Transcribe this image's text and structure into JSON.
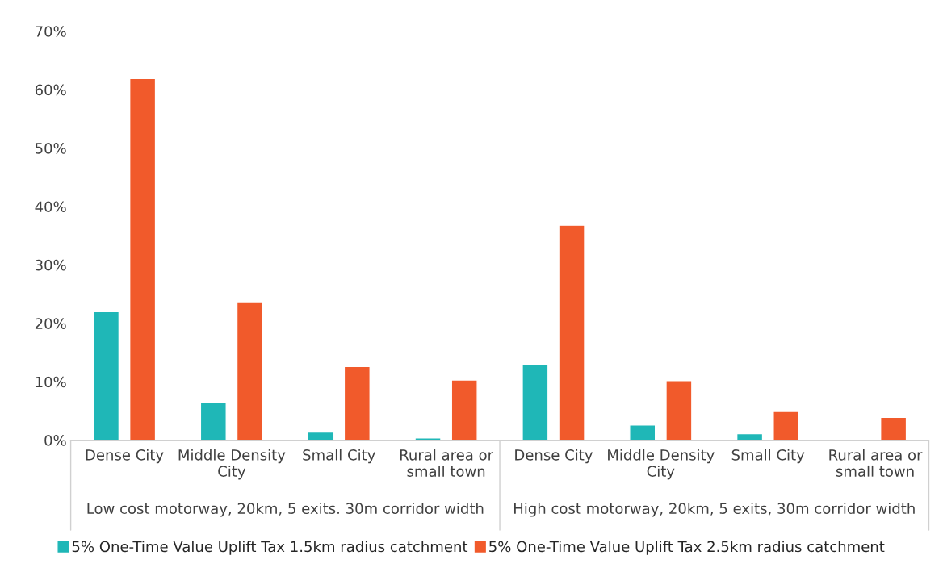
{
  "chart_data": {
    "type": "bar",
    "categories": [
      "Dense City",
      "Middle Density\nCity",
      "Small City",
      "Rural area or\nsmall town",
      "Dense City",
      "Middle Density\nCity",
      "Small City",
      "Rural area or\nsmall town"
    ],
    "series": [
      {
        "name": "5% One-Time Value Uplift Tax 1.5km radius catchment",
        "color": "#1fb7b7",
        "values": [
          22.0,
          6.4,
          1.4,
          0.4,
          13.0,
          2.6,
          1.1,
          null
        ]
      },
      {
        "name": "5% One-Time Value Uplift Tax 2.5km radius catchment",
        "color": "#f15a2b",
        "values": [
          61.9,
          23.7,
          12.6,
          10.3,
          36.8,
          10.2,
          4.9,
          3.9
        ]
      }
    ],
    "annotations": [
      "Low cost motorway, 20km, 5 exits. 30m corridor width",
      "High cost motorway, 20km, 5 exits, 30m corridor width"
    ],
    "ylim": [
      0,
      70
    ],
    "yticks": [
      {
        "value": 0,
        "label": "0%"
      },
      {
        "value": 10,
        "label": "10%"
      },
      {
        "value": 20,
        "label": "20%"
      },
      {
        "value": 30,
        "label": "30%"
      },
      {
        "value": 40,
        "label": "40%"
      },
      {
        "value": 50,
        "label": "50%"
      },
      {
        "value": 60,
        "label": "60%"
      },
      {
        "value": 70,
        "label": "70%"
      }
    ],
    "grid": false,
    "legend": "bottom"
  }
}
